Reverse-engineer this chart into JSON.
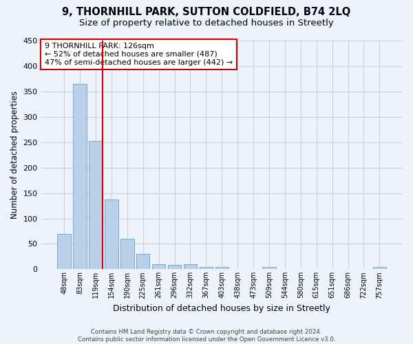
{
  "title": "9, THORNHILL PARK, SUTTON COLDFIELD, B74 2LQ",
  "subtitle": "Size of property relative to detached houses in Streetly",
  "xlabel": "Distribution of detached houses by size in Streetly",
  "ylabel": "Number of detached properties",
  "footer_line1": "Contains HM Land Registry data © Crown copyright and database right 2024.",
  "footer_line2": "Contains public sector information licensed under the Open Government Licence v3.0.",
  "categories": [
    "48sqm",
    "83sqm",
    "119sqm",
    "154sqm",
    "190sqm",
    "225sqm",
    "261sqm",
    "296sqm",
    "332sqm",
    "367sqm",
    "403sqm",
    "438sqm",
    "473sqm",
    "509sqm",
    "544sqm",
    "580sqm",
    "615sqm",
    "651sqm",
    "686sqm",
    "722sqm",
    "757sqm"
  ],
  "values": [
    70,
    365,
    252,
    137,
    60,
    30,
    10,
    8,
    10,
    5,
    5,
    0,
    0,
    4,
    0,
    0,
    0,
    0,
    0,
    0,
    4
  ],
  "bar_color": "#b8d0ea",
  "bar_edge_color": "#6a9fc0",
  "vline_color": "#cc0000",
  "annotation_text": "9 THORNHILL PARK: 126sqm\n← 52% of detached houses are smaller (487)\n47% of semi-detached houses are larger (442) →",
  "annotation_box_color": "white",
  "annotation_box_edge_color": "#cc0000",
  "ylim": [
    0,
    450
  ],
  "yticks": [
    0,
    50,
    100,
    150,
    200,
    250,
    300,
    350,
    400,
    450
  ],
  "background_color": "#eef2fa",
  "plot_bg_color": "#eef2fa",
  "grid_color": "#c8cfe8",
  "title_fontsize": 10.5,
  "subtitle_fontsize": 9.5
}
